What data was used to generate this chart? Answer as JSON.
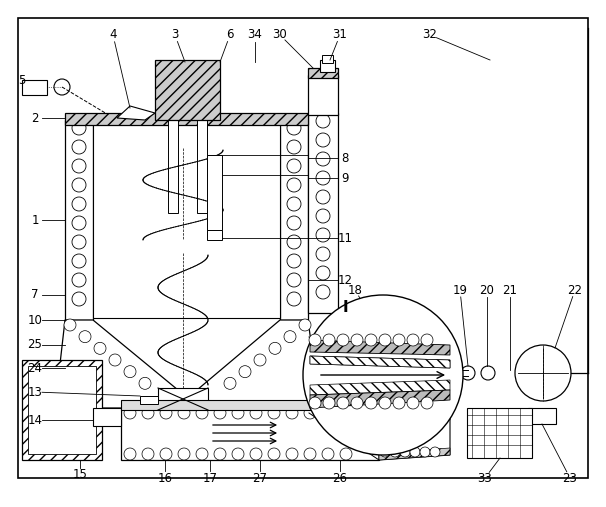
{
  "bg_color": "#ffffff",
  "fig_width": 6.06,
  "fig_height": 5.07,
  "dpi": 100
}
